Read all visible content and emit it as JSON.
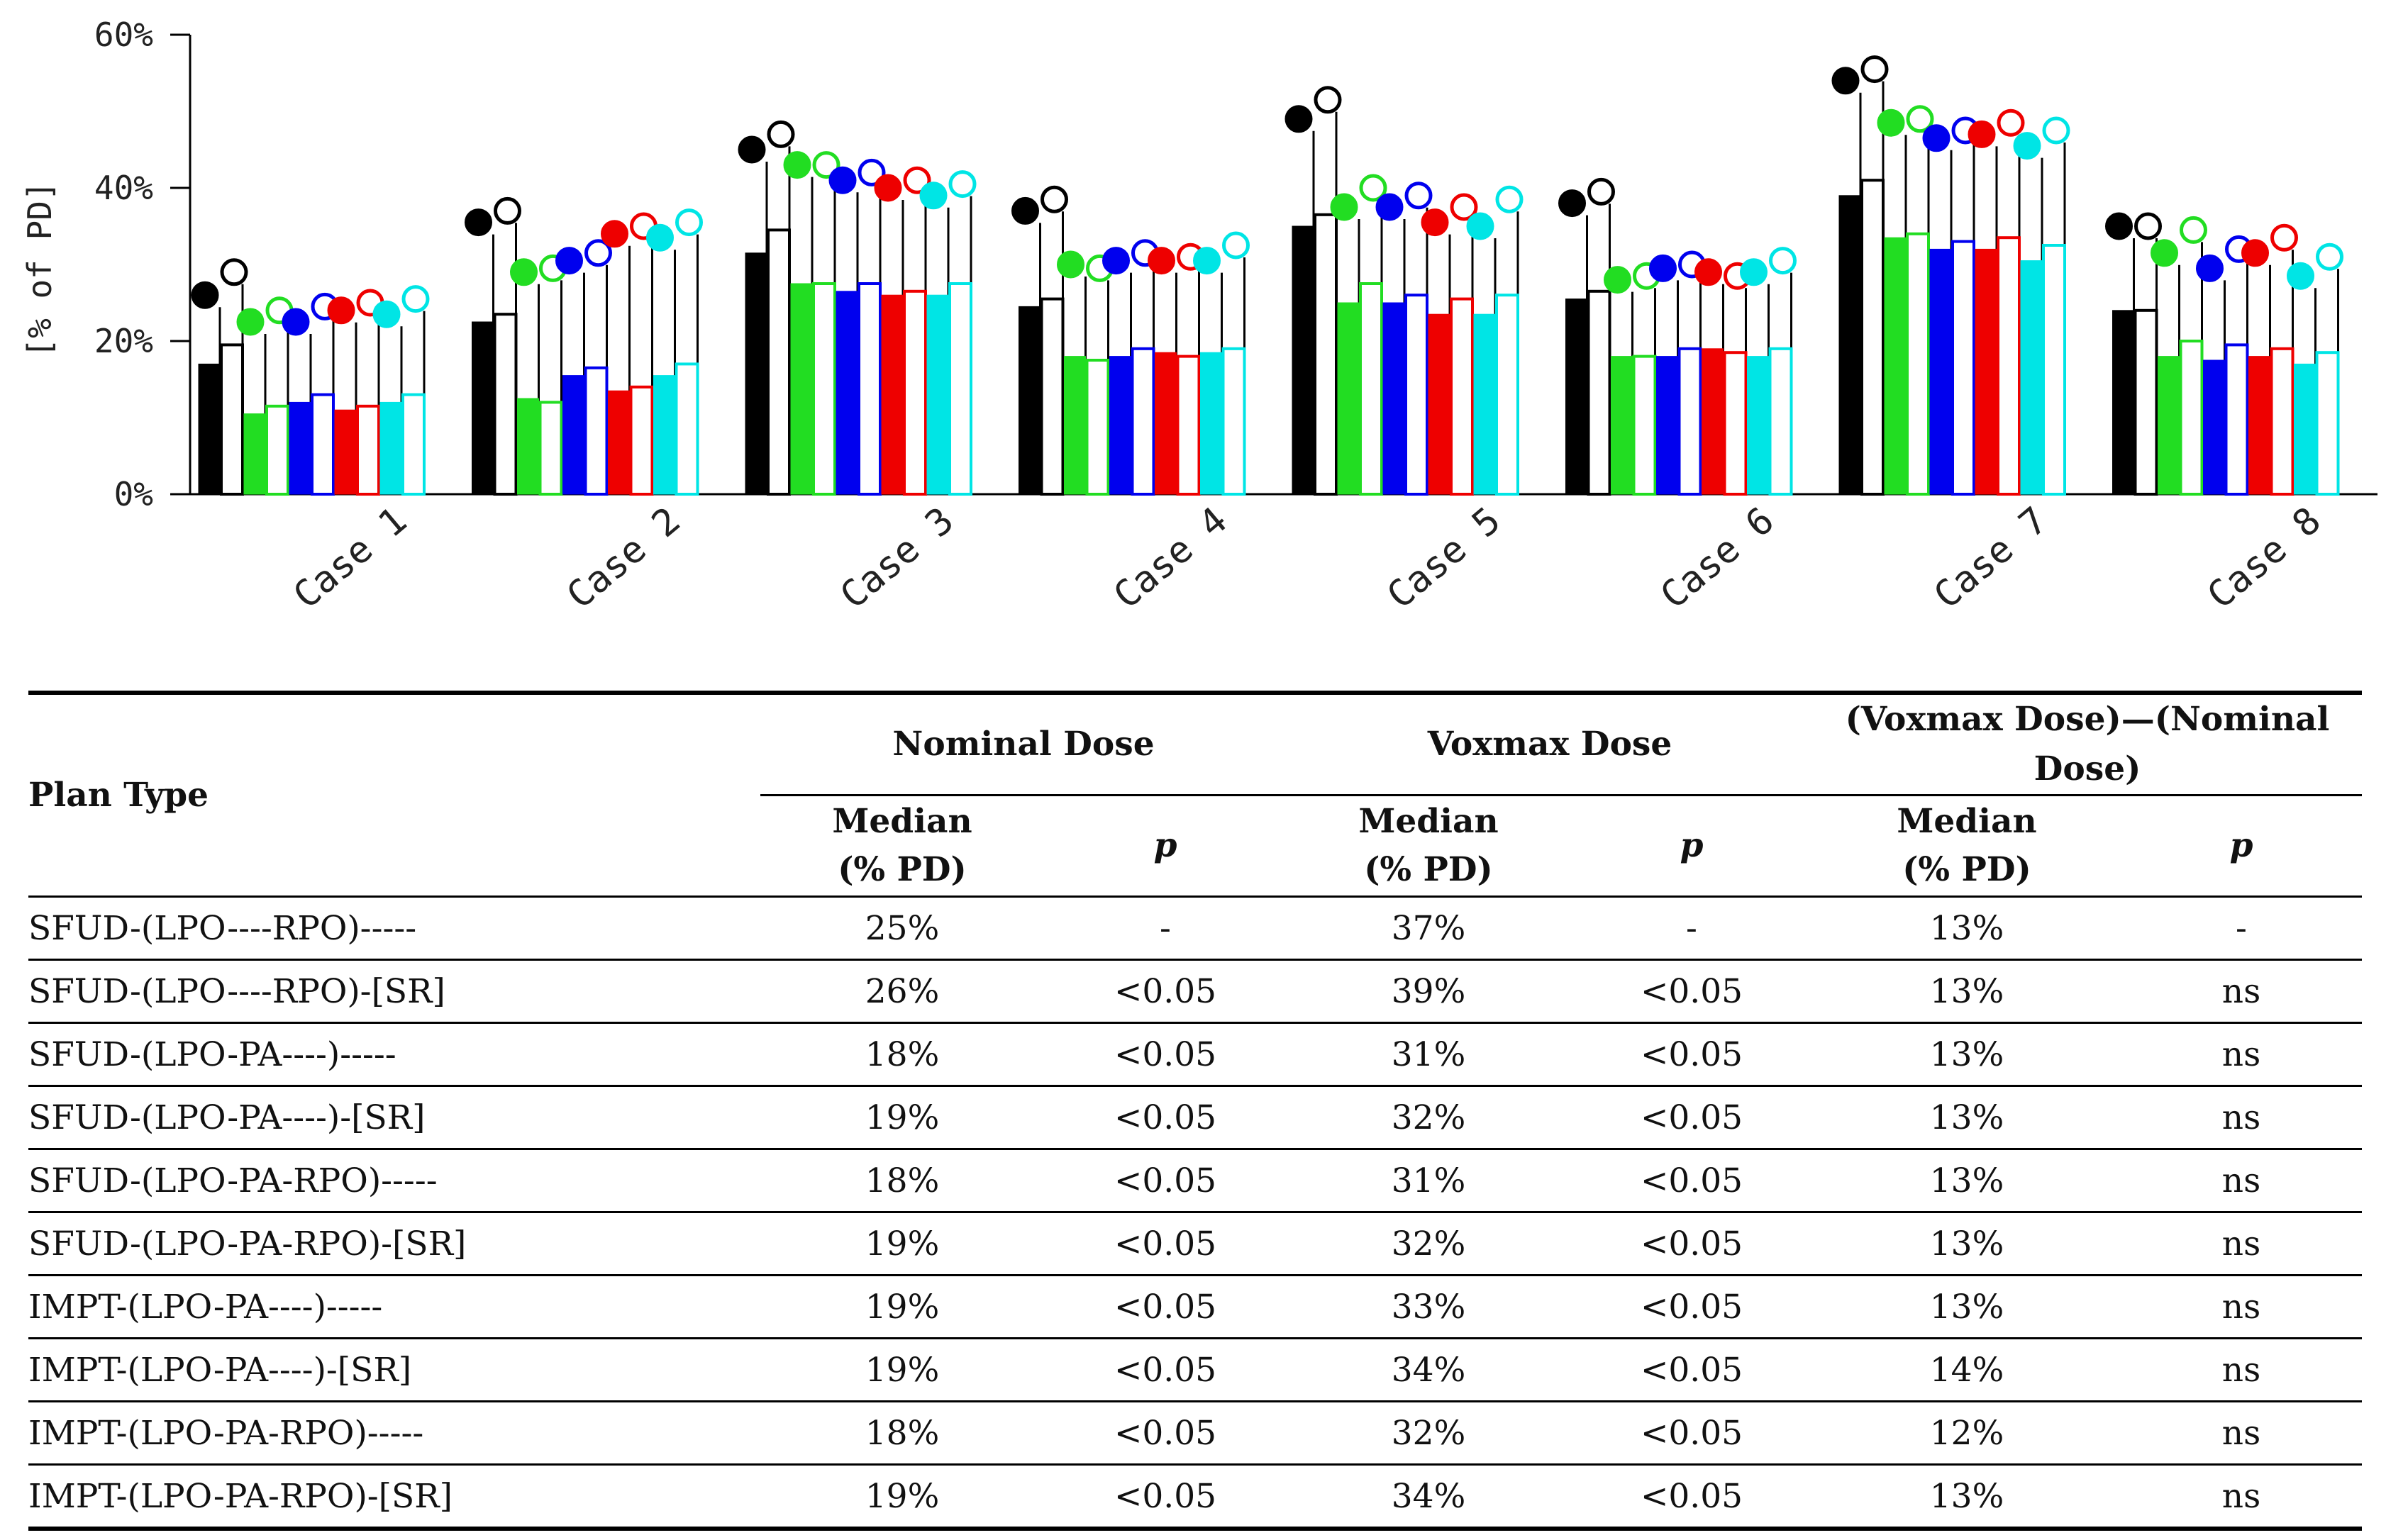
{
  "chart_data": {
    "type": "bar",
    "ylabel": "[% of PD]",
    "ylim": [
      0,
      60
    ],
    "yticks": [
      "0%",
      "20%",
      "40%",
      "60%"
    ],
    "categories": [
      "Case 1",
      "Case 2",
      "Case 3",
      "Case 4",
      "Case 5",
      "Case 6",
      "Case 7",
      "Case 8"
    ],
    "series": [
      {
        "name": "SFUD-(LPO----RPO)-----",
        "color": "#000000",
        "filled": true,
        "nominal": [
          17,
          22.5,
          31.5,
          24.5,
          35,
          25.5,
          39,
          24
        ],
        "voxmax": [
          26,
          35.5,
          45,
          37,
          49,
          38,
          54,
          35
        ]
      },
      {
        "name": "SFUD-(LPO----RPO)-[SR]",
        "color": "#000000",
        "filled": false,
        "nominal": [
          19.5,
          23.5,
          34.5,
          25.5,
          36.5,
          26.5,
          41,
          24
        ],
        "voxmax": [
          29,
          37,
          47,
          38.5,
          51.5,
          39.5,
          55.5,
          35
        ]
      },
      {
        "name": "SFUD-(LPO-PA----)-----",
        "color": "#22dd22",
        "filled": true,
        "nominal": [
          10.5,
          12.5,
          27.5,
          18,
          25,
          18,
          33.5,
          18
        ],
        "voxmax": [
          22.5,
          29,
          43,
          30,
          37.5,
          28,
          48.5,
          31.5
        ]
      },
      {
        "name": "SFUD-(LPO-PA----)-[SR]",
        "color": "#22dd22",
        "filled": false,
        "nominal": [
          11.5,
          12,
          27.5,
          17.5,
          27.5,
          18,
          34,
          20
        ],
        "voxmax": [
          24,
          29.5,
          43,
          29.5,
          40,
          28.5,
          49,
          34.5
        ]
      },
      {
        "name": "SFUD-(LPO-PA-RPO)-----",
        "color": "#0000ee",
        "filled": true,
        "nominal": [
          12,
          15.5,
          26.5,
          18,
          25,
          18,
          32,
          17.5
        ],
        "voxmax": [
          22.5,
          30.5,
          41,
          30.5,
          37.5,
          29.5,
          46.5,
          29.5
        ]
      },
      {
        "name": "SFUD-(LPO-PA-RPO)-[SR]",
        "color": "#0000ee",
        "filled": false,
        "nominal": [
          13,
          16.5,
          27.5,
          19,
          26,
          19,
          33,
          19.5
        ],
        "voxmax": [
          24.5,
          31.5,
          42,
          31.5,
          39,
          30,
          47.5,
          32
        ]
      },
      {
        "name": "IMPT-(LPO-PA----)-----",
        "color": "#ee0000",
        "filled": true,
        "nominal": [
          11,
          13.5,
          26,
          18.5,
          23.5,
          19,
          32,
          18
        ],
        "voxmax": [
          24,
          34,
          40,
          30.5,
          35.5,
          29,
          47,
          31.5
        ]
      },
      {
        "name": "IMPT-(LPO-PA----)-[SR]",
        "color": "#ee0000",
        "filled": false,
        "nominal": [
          11.5,
          14,
          26.5,
          18,
          25.5,
          18.5,
          33.5,
          19
        ],
        "voxmax": [
          25,
          35,
          41,
          31,
          37.5,
          28.5,
          48.5,
          33.5
        ]
      },
      {
        "name": "IMPT-(LPO-PA-RPO)-----",
        "color": "#00e5e5",
        "filled": true,
        "nominal": [
          12,
          15.5,
          26,
          18.5,
          23.5,
          18,
          30.5,
          17
        ],
        "voxmax": [
          23.5,
          33.5,
          39,
          30.5,
          35,
          29,
          45.5,
          28.5
        ]
      },
      {
        "name": "IMPT-(LPO-PA-RPO)-[SR]",
        "color": "#00e5e5",
        "filled": false,
        "nominal": [
          13,
          17,
          27.5,
          19,
          26,
          19,
          32.5,
          18.5
        ],
        "voxmax": [
          25.5,
          35.5,
          40.5,
          32.5,
          38.5,
          30.5,
          47.5,
          31
        ]
      }
    ]
  },
  "table": {
    "plan_type_header": "Plan Type",
    "groups": [
      "Nominal Dose",
      "Voxmax Dose",
      "(Voxmax Dose)—(Nominal Dose)"
    ],
    "median_header_line1": "Median",
    "median_header_line2": "(% PD)",
    "p_header": "p",
    "rows": [
      {
        "plan": "SFUD-(LPO----RPO)-----",
        "nom_med": "25%",
        "nom_p": "-",
        "vox_med": "37%",
        "vox_p": "-",
        "diff_med": "13%",
        "diff_p": "-"
      },
      {
        "plan": "SFUD-(LPO----RPO)-[SR]",
        "nom_med": "26%",
        "nom_p": "<0.05",
        "vox_med": "39%",
        "vox_p": "<0.05",
        "diff_med": "13%",
        "diff_p": "ns"
      },
      {
        "plan": "SFUD-(LPO-PA----)-----",
        "nom_med": "18%",
        "nom_p": "<0.05",
        "vox_med": "31%",
        "vox_p": "<0.05",
        "diff_med": "13%",
        "diff_p": "ns"
      },
      {
        "plan": "SFUD-(LPO-PA----)-[SR]",
        "nom_med": "19%",
        "nom_p": "<0.05",
        "vox_med": "32%",
        "vox_p": "<0.05",
        "diff_med": "13%",
        "diff_p": "ns"
      },
      {
        "plan": "SFUD-(LPO-PA-RPO)-----",
        "nom_med": "18%",
        "nom_p": "<0.05",
        "vox_med": "31%",
        "vox_p": "<0.05",
        "diff_med": "13%",
        "diff_p": "ns"
      },
      {
        "plan": "SFUD-(LPO-PA-RPO)-[SR]",
        "nom_med": "19%",
        "nom_p": "<0.05",
        "vox_med": "32%",
        "vox_p": "<0.05",
        "diff_med": "13%",
        "diff_p": "ns"
      },
      {
        "plan": "IMPT-(LPO-PA----)-----",
        "nom_med": "19%",
        "nom_p": "<0.05",
        "vox_med": "33%",
        "vox_p": "<0.05",
        "diff_med": "13%",
        "diff_p": "ns"
      },
      {
        "plan": "IMPT-(LPO-PA----)-[SR]",
        "nom_med": "19%",
        "nom_p": "<0.05",
        "vox_med": "34%",
        "vox_p": "<0.05",
        "diff_med": "14%",
        "diff_p": "ns"
      },
      {
        "plan": "IMPT-(LPO-PA-RPO)-----",
        "nom_med": "18%",
        "nom_p": "<0.05",
        "vox_med": "32%",
        "vox_p": "<0.05",
        "diff_med": "12%",
        "diff_p": "ns"
      },
      {
        "plan": "IMPT-(LPO-PA-RPO)-[SR]",
        "nom_med": "19%",
        "nom_p": "<0.05",
        "vox_med": "34%",
        "vox_p": "<0.05",
        "diff_med": "13%",
        "diff_p": "ns"
      }
    ]
  }
}
